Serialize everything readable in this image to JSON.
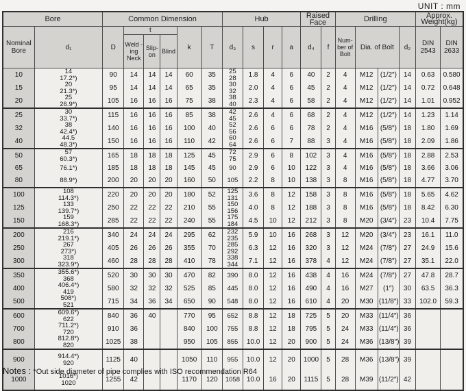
{
  "page": {
    "unit_label": "UNIT : mm",
    "notes_prefix": "Notes :",
    "notes_text": "*Out side diameter of pipe complies with ISO recommendation R64"
  },
  "table": {
    "headers": {
      "bore": "Bore",
      "common_dimension": "Common Dimension",
      "hub": "Hub",
      "raised_face": "Raised Face",
      "drilling": "Drilling",
      "approx_weight": "Approx. Weight(kg)",
      "nominal_bore": "Nominal Bore",
      "d1": "d₁",
      "D": "D",
      "t": "t",
      "welding_neck": "Weld -ing Neck",
      "slip_on": "Slip- on",
      "blind": "Blind",
      "k": "k",
      "T": "T",
      "d3": "d₃",
      "s": "s",
      "r": "r",
      "a": "a",
      "d4": "d₄",
      "f": "f",
      "number_of_bolt": "Num- ber of Bolt",
      "dia_of_bolt": "Dia. of Bolt",
      "d2": "d₂",
      "din_2543": "DIN 2543",
      "din_2633": "DIN 2633"
    },
    "group_breaks": [
      2,
      5,
      8,
      11,
      14,
      17,
      20
    ],
    "tall_rows": [
      21,
      22
    ],
    "rows": [
      {
        "nominal": "10",
        "d1": [
          "14",
          "17.2*)"
        ],
        "D": "90",
        "weld": "14",
        "slip": "14",
        "blind": "14",
        "k": "60",
        "T": "35",
        "d3": [
          "25",
          "28"
        ],
        "s": "1.8",
        "r": "4",
        "a": "6",
        "d4": "40",
        "f": "2",
        "num": "4",
        "boltM": "M12",
        "boltIn": "(1/2″)",
        "d2": "14",
        "w2543": "0.63",
        "w2633": "0.580"
      },
      {
        "nominal": "15",
        "d1": [
          "20",
          "21.3*)"
        ],
        "D": "95",
        "weld": "14",
        "slip": "14",
        "blind": "14",
        "k": "65",
        "T": "35",
        "d3": [
          "30",
          "32"
        ],
        "s": "2.0",
        "r": "4",
        "a": "6",
        "d4": "45",
        "f": "2",
        "num": "4",
        "boltM": "M12",
        "boltIn": "(1/2″)",
        "d2": "14",
        "w2543": "0.72",
        "w2633": "0.648"
      },
      {
        "nominal": "20",
        "d1": [
          "25",
          "26.9*)"
        ],
        "D": "105",
        "weld": "16",
        "slip": "16",
        "blind": "16",
        "k": "75",
        "T": "38",
        "d3": [
          "38",
          "40"
        ],
        "s": "2.3",
        "r": "4",
        "a": "6",
        "d4": "58",
        "f": "2",
        "num": "4",
        "boltM": "M12",
        "boltIn": "(1/2″)",
        "d2": "14",
        "w2543": "1.01",
        "w2633": "0.952"
      },
      {
        "nominal": "25",
        "d1": [
          "30",
          "33.7*)"
        ],
        "D": "115",
        "weld": "16",
        "slip": "16",
        "blind": "16",
        "k": "85",
        "T": "38",
        "d3": [
          "42",
          "45"
        ],
        "s": "2.6",
        "r": "4",
        "a": "6",
        "d4": "68",
        "f": "2",
        "num": "4",
        "boltM": "M12",
        "boltIn": "(1/2″)",
        "d2": "14",
        "w2543": "1.23",
        "w2633": "1.14"
      },
      {
        "nominal": "32",
        "d1": [
          "38",
          "42.4*)"
        ],
        "D": "140",
        "weld": "16",
        "slip": "16",
        "blind": "16",
        "k": "100",
        "T": "40",
        "d3": [
          "52",
          "56"
        ],
        "s": "2.6",
        "r": "6",
        "a": "6",
        "d4": "78",
        "f": "2",
        "num": "4",
        "boltM": "M16",
        "boltIn": "(5/8″)",
        "d2": "18",
        "w2543": "1.80",
        "w2633": "1.69"
      },
      {
        "nominal": "40",
        "d1": [
          "44.5",
          "48.3*)"
        ],
        "D": "150",
        "weld": "16",
        "slip": "16",
        "blind": "16",
        "k": "110",
        "T": "42",
        "d3": [
          "60",
          "64"
        ],
        "s": "2.6",
        "r": "6",
        "a": "7",
        "d4": "88",
        "f": "3",
        "num": "4",
        "boltM": "M16",
        "boltIn": "(5/8″)",
        "d2": "18",
        "w2543": "2.09",
        "w2633": "1.86"
      },
      {
        "nominal": "50",
        "d1": [
          "57",
          "60.3*)"
        ],
        "D": "165",
        "weld": "18",
        "slip": "18",
        "blind": "18",
        "k": "125",
        "T": "45",
        "d3": [
          "72",
          "75"
        ],
        "s": "2.9",
        "r": "6",
        "a": "8",
        "d4": "102",
        "f": "3",
        "num": "4",
        "boltM": "M16",
        "boltIn": "(5/8″)",
        "d2": "18",
        "w2543": "2.88",
        "w2633": "2.53"
      },
      {
        "nominal": "65",
        "d1": [
          "76.1*)"
        ],
        "D": "185",
        "weld": "18",
        "slip": "18",
        "blind": "18",
        "k": "145",
        "T": "45",
        "d3": [
          "90"
        ],
        "s": "2.9",
        "r": "6",
        "a": "10",
        "d4": "122",
        "f": "3",
        "num": "4",
        "boltM": "M16",
        "boltIn": "(5/8″)",
        "d2": "18",
        "w2543": "3.66",
        "w2633": "3.06"
      },
      {
        "nominal": "80",
        "d1": [
          "88.9*)"
        ],
        "D": "200",
        "weld": "20",
        "slip": "20",
        "blind": "20",
        "k": "160",
        "T": "50",
        "d3": [
          "105"
        ],
        "s": "2.2",
        "r": "8",
        "a": "10",
        "d4": "138",
        "f": "3",
        "num": "8",
        "boltM": "M16",
        "boltIn": "(5/8″)",
        "d2": "18",
        "w2543": "4.77",
        "w2633": "3.70"
      },
      {
        "nominal": "100",
        "d1": [
          "108",
          "114.3*)"
        ],
        "D": "220",
        "weld": "20",
        "slip": "20",
        "blind": "20",
        "k": "180",
        "T": "52",
        "d3": [
          "125",
          "131"
        ],
        "s": "3.6",
        "r": "8",
        "a": "12",
        "d4": "158",
        "f": "3",
        "num": "8",
        "boltM": "M16",
        "boltIn": "(5/8″)",
        "d2": "18",
        "w2543": "5.65",
        "w2633": "4.62"
      },
      {
        "nominal": "125",
        "d1": [
          "133",
          "139.7*)"
        ],
        "D": "250",
        "weld": "22",
        "slip": "22",
        "blind": "22",
        "k": "210",
        "T": "55",
        "d3": [
          "150",
          "156"
        ],
        "s": "4.0",
        "r": "8",
        "a": "12",
        "d4": "188",
        "f": "3",
        "num": "8",
        "boltM": "M16",
        "boltIn": "(5/8″)",
        "d2": "18",
        "w2543": "8.42",
        "w2633": "6.30"
      },
      {
        "nominal": "150",
        "d1": [
          "159",
          "168.3*)"
        ],
        "D": "285",
        "weld": "22",
        "slip": "22",
        "blind": "22",
        "k": "240",
        "T": "55",
        "d3": [
          "175",
          "184"
        ],
        "s": "4.5",
        "r": "10",
        "a": "12",
        "d4": "212",
        "f": "3",
        "num": "8",
        "boltM": "M20",
        "boltIn": "(3/4″)",
        "d2": "23",
        "w2543": "10.4",
        "w2633": "7.75"
      },
      {
        "nominal": "200",
        "d1": [
          "216",
          "219.1*)"
        ],
        "D": "340",
        "weld": "24",
        "slip": "24",
        "blind": "24",
        "k": "295",
        "T": "62",
        "d3": [
          "232",
          "235"
        ],
        "s": "5.9",
        "r": "10",
        "a": "16",
        "d4": "268",
        "f": "3",
        "num": "12",
        "boltM": "M20",
        "boltIn": "(3/4″)",
        "d2": "23",
        "w2543": "16.1",
        "w2633": "11.0"
      },
      {
        "nominal": "250",
        "d1": [
          "267",
          "273*)"
        ],
        "D": "405",
        "weld": "26",
        "slip": "26",
        "blind": "26",
        "k": "355",
        "T": "70",
        "d3": [
          "285",
          "292"
        ],
        "s": "6.3",
        "r": "12",
        "a": "16",
        "d4": "320",
        "f": "3",
        "num": "12",
        "boltM": "M24",
        "boltIn": "(7/8″)",
        "d2": "27",
        "w2543": "24.9",
        "w2633": "15.6"
      },
      {
        "nominal": "300",
        "d1": [
          "318",
          "323.9*)"
        ],
        "D": "460",
        "weld": "28",
        "slip": "28",
        "blind": "28",
        "k": "410",
        "T": "78",
        "d3": [
          "338",
          "344"
        ],
        "s": "7.1",
        "r": "12",
        "a": "16",
        "d4": "378",
        "f": "4",
        "num": "12",
        "boltM": "M24",
        "boltIn": "(7/8″)",
        "d2": "27",
        "w2543": "35.1",
        "w2633": "22.0"
      },
      {
        "nominal": "350",
        "d1": [
          "355.6*)",
          "368"
        ],
        "D": "520",
        "weld": "30",
        "slip": "30",
        "blind": "30",
        "k": "470",
        "T": "82",
        "d3": [
          "390"
        ],
        "s": "8.0",
        "r": "12",
        "a": "16",
        "d4": "438",
        "f": "4",
        "num": "16",
        "boltM": "M24",
        "boltIn": "(7/8″)",
        "d2": "27",
        "w2543": "47.8",
        "w2633": "28.7"
      },
      {
        "nominal": "400",
        "d1": [
          "406.4*)",
          "419"
        ],
        "D": "580",
        "weld": "32",
        "slip": "32",
        "blind": "32",
        "k": "525",
        "T": "85",
        "d3": [
          "445"
        ],
        "s": "8.0",
        "r": "12",
        "a": "16",
        "d4": "490",
        "f": "4",
        "num": "16",
        "boltM": "M27",
        "boltIn": "(1″)",
        "d2": "30",
        "w2543": "63.5",
        "w2633": "36.3"
      },
      {
        "nominal": "500",
        "d1": [
          "508*)",
          "521"
        ],
        "D": "715",
        "weld": "34",
        "slip": "36",
        "blind": "34",
        "k": "650",
        "T": "90",
        "d3": [
          "548"
        ],
        "s": "8.0",
        "r": "12",
        "a": "16",
        "d4": "610",
        "f": "4",
        "num": "20",
        "boltM": "M30",
        "boltIn": "(11/8″)",
        "d2": "33",
        "w2543": "102.0",
        "w2633": "59.3"
      },
      {
        "nominal": "600",
        "d1": [
          "609.6*)",
          "622"
        ],
        "D": "840",
        "weld": "36",
        "slip": "40",
        "blind": "",
        "k": "770",
        "T": "95",
        "d3": [
          "652"
        ],
        "s": "8.8",
        "r": "12",
        "a": "18",
        "d4": "725",
        "f": "5",
        "num": "20",
        "boltM": "M33",
        "boltIn": "(11/4″)",
        "d2": "36",
        "w2543": "",
        "w2633": ""
      },
      {
        "nominal": "700",
        "d1": [
          "711.2*)",
          "720"
        ],
        "D": "910",
        "weld": "36",
        "slip": "",
        "blind": "",
        "k": "840",
        "T": "100",
        "d3": [
          "755"
        ],
        "s": "8.8",
        "r": "12",
        "a": "18",
        "d4": "795",
        "f": "5",
        "num": "24",
        "boltM": "M33",
        "boltIn": "(11/4″)",
        "d2": "36",
        "w2543": "",
        "w2633": ""
      },
      {
        "nominal": "800",
        "d1": [
          "812.8*)",
          "820"
        ],
        "D": "1025",
        "weld": "38",
        "slip": "",
        "blind": "",
        "k": "950",
        "T": "105",
        "d3": [
          "855"
        ],
        "s": "10.0",
        "r": "12",
        "a": "20",
        "d4": "900",
        "f": "5",
        "num": "24",
        "boltM": "M36",
        "boltIn": "(13/8″)",
        "d2": "39",
        "w2543": "",
        "w2633": ""
      },
      {
        "nominal": "900",
        "d1": [
          "914.4*)",
          "920"
        ],
        "D": "1125",
        "weld": "40",
        "slip": "",
        "blind": "",
        "k": "1050",
        "T": "110",
        "d3": [
          "955"
        ],
        "s": "10.0",
        "r": "12",
        "a": "20",
        "d4": "1000",
        "f": "5",
        "num": "28",
        "boltM": "M36",
        "boltIn": "(13/8″)",
        "d2": "39",
        "w2543": "",
        "w2633": ""
      },
      {
        "nominal": "1000",
        "d1": [
          "1016*)",
          "1020"
        ],
        "D": "1255",
        "weld": "42",
        "slip": "",
        "blind": "",
        "k": "1170",
        "T": "120",
        "d3": [
          "1058"
        ],
        "s": "10.0",
        "r": "16",
        "a": "20",
        "d4": "1115",
        "f": "5",
        "num": "28",
        "boltM": "M39",
        "boltIn": "(11/2″)",
        "d2": "42",
        "w2543": "",
        "w2633": ""
      }
    ]
  }
}
